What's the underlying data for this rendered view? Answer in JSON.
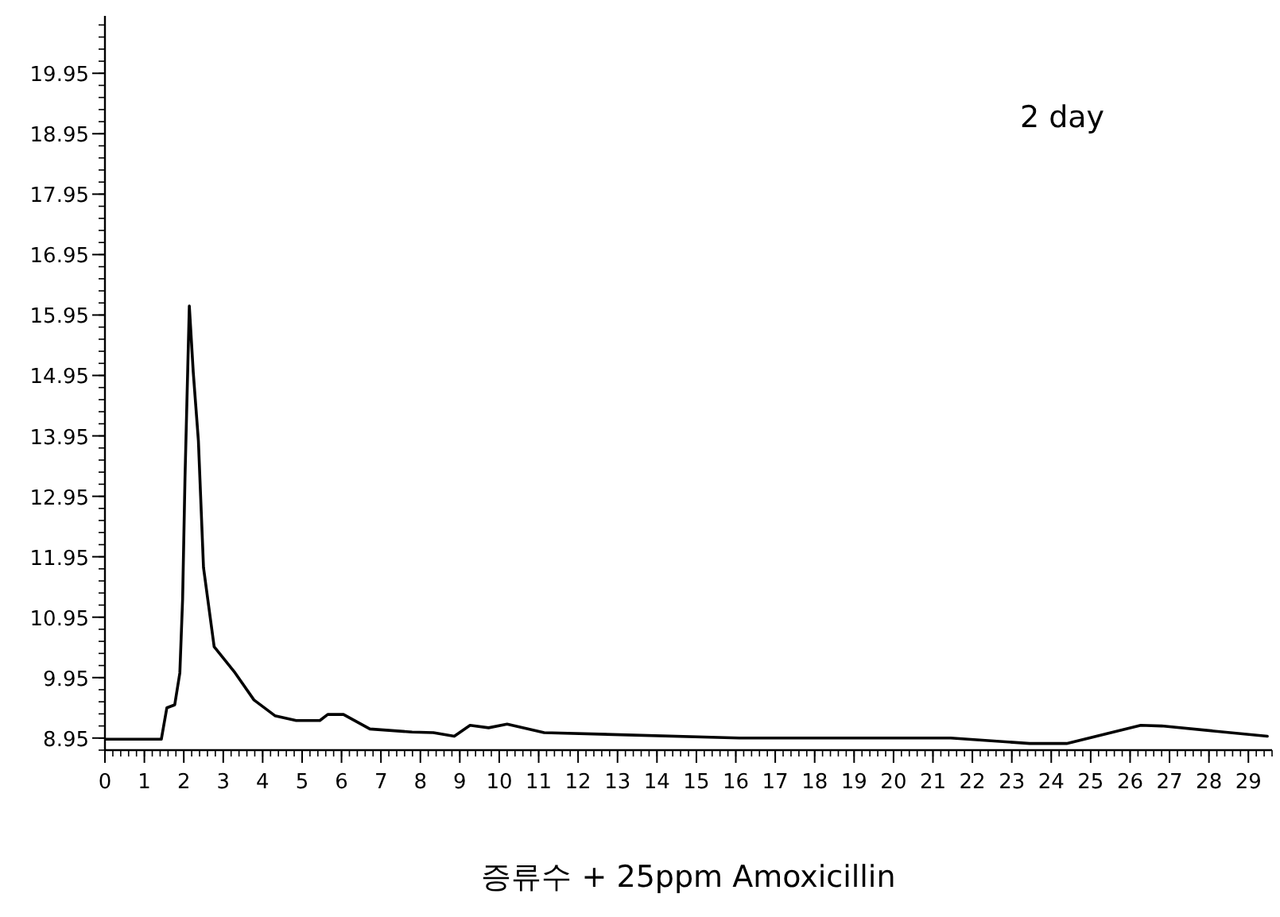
{
  "chart_data": {
    "type": "line",
    "xlabel": "증류수 + 25ppm Amoxicillin",
    "annotations": [
      "2 day"
    ],
    "xlim": [
      0,
      29.6
    ],
    "ylim": [
      8.75,
      20.9
    ],
    "xticks": [
      0,
      1,
      2,
      3,
      4,
      5,
      6,
      7,
      8,
      9,
      10,
      11,
      12,
      13,
      14,
      15,
      16,
      17,
      18,
      19,
      20,
      21,
      22,
      23,
      24,
      25,
      26,
      27,
      28,
      29
    ],
    "yticks": [
      {
        "value": 8.95,
        "label": "8.95"
      },
      {
        "value": 9.95,
        "label": "9.95"
      },
      {
        "value": 10.95,
        "label": "10.95"
      },
      {
        "value": 11.95,
        "label": "11.95"
      },
      {
        "value": 12.95,
        "label": "12.95"
      },
      {
        "value": 13.95,
        "label": "13.95"
      },
      {
        "value": 14.95,
        "label": "14.95"
      },
      {
        "value": 15.95,
        "label": "15.95"
      },
      {
        "value": 16.95,
        "label": "16.95"
      },
      {
        "value": 17.95,
        "label": "17.95"
      },
      {
        "value": 18.95,
        "label": "18.95"
      },
      {
        "value": 19.95,
        "label": "19.95"
      }
    ],
    "grid": false,
    "series": [
      {
        "color": "#000000",
        "x": [
          0.03,
          1.43,
          1.57,
          1.77,
          1.9,
          1.97,
          2.03,
          2.14,
          2.24,
          2.37,
          2.5,
          2.77,
          3.3,
          3.78,
          4.31,
          4.85,
          5.45,
          5.65,
          6.05,
          6.72,
          7.79,
          8.33,
          8.86,
          9.26,
          9.73,
          10.2,
          11.14,
          16.09,
          21.45,
          23.45,
          24.39,
          26.27,
          26.8,
          29.48
        ],
        "values": [
          8.93,
          8.93,
          9.45,
          9.5,
          10.03,
          11.25,
          13.25,
          16.1,
          15.0,
          13.87,
          11.77,
          10.46,
          10.03,
          9.58,
          9.32,
          9.24,
          9.24,
          9.34,
          9.34,
          9.1,
          9.05,
          9.04,
          8.98,
          9.16,
          9.12,
          9.18,
          9.04,
          8.95,
          8.95,
          8.86,
          8.86,
          9.16,
          9.15,
          8.98
        ]
      }
    ]
  }
}
